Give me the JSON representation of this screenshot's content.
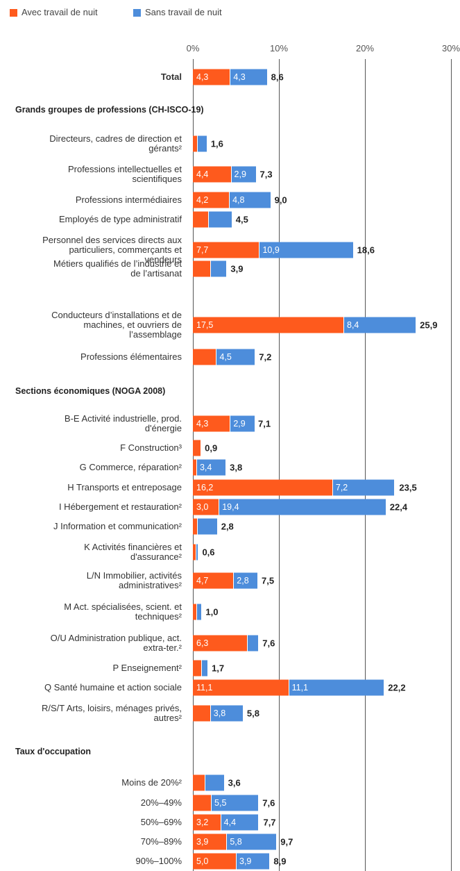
{
  "chart_data": {
    "type": "bar",
    "orientation": "horizontal",
    "stacked": true,
    "sections": [
      "Grands groupes de professions (CH-ISCO-19)",
      "Sections économiques (NOGA 2008)",
      "Taux d'occupation"
    ],
    "categories": [
      "Total",
      "Directeurs, cadres de direction et\ngérants²",
      "Professions intellectuelles et\nscientifiques",
      "Professions intermédiaires",
      "Employés de type administratif",
      "Personnel des services directs aux\nparticuliers, commerçants et\nvendeurs",
      "Métiers qualifiés de l’industrie et\nde l’artisanat",
      "Conducteurs d’installations et de\nmachines, et ouvriers de\nl’assemblage",
      "Professions élémentaires",
      "B-E Activité industrielle, prod.\nd'énergie",
      "F Construction³",
      "G Commerce, réparation²",
      "H Transports et entreposage",
      "I Hébergement et restauration²",
      "J Information et communication²",
      "K Activités financières et\nd'assurance²",
      "L/N Immobilier, activités\nadministratives²",
      "M Act. spécialisées, scient. et\ntechniques²",
      "O/U Administration publique, act.\nextra-ter.²",
      "P Enseignement²",
      "Q Santé humaine et action sociale",
      "R/S/T Arts, loisirs, ménages privés,\nautres²",
      "Moins de 20%²",
      "20%–49%",
      "50%–69%",
      "70%–89%",
      "90%–100%"
    ],
    "series": [
      {
        "name": "Avec travail de nuit",
        "color": "#fe5a1d",
        "values": [
          4.3,
          0.5,
          4.4,
          4.2,
          1.8,
          7.7,
          2.0,
          17.5,
          2.7,
          4.3,
          0.9,
          0.4,
          16.2,
          3.0,
          0.5,
          0.3,
          4.7,
          0.4,
          6.3,
          1.0,
          11.1,
          2.0,
          1.4,
          2.1,
          3.2,
          3.9,
          5.0
        ],
        "value_labels": [
          "4,3",
          null,
          "4,4",
          "4,2",
          null,
          "7,7",
          null,
          "17,5",
          null,
          "4,3",
          null,
          null,
          "16,2",
          "3,0",
          null,
          null,
          "4,7",
          null,
          "6,3",
          null,
          "11,1",
          null,
          null,
          null,
          "3,2",
          "3,9",
          "5,0"
        ]
      },
      {
        "name": "Sans travail de nuit",
        "color": "#4d8ddb",
        "values": [
          4.3,
          1.1,
          2.9,
          4.8,
          2.7,
          10.9,
          1.9,
          8.4,
          4.5,
          2.9,
          null,
          3.4,
          7.2,
          19.4,
          2.3,
          0.3,
          2.8,
          0.6,
          1.3,
          0.7,
          11.1,
          3.8,
          2.2,
          5.5,
          4.4,
          5.8,
          3.9
        ],
        "value_labels": [
          "4,3",
          null,
          "2,9",
          "4,8",
          null,
          "10,9",
          null,
          "8,4",
          "4,5",
          "2,9",
          null,
          "3,4",
          "7,2",
          "19,4",
          null,
          null,
          "2,8",
          null,
          null,
          null,
          "11,1",
          "3,8",
          null,
          "5,5",
          "4,4",
          "5,8",
          "3,9"
        ]
      }
    ],
    "totals": [
      8.6,
      1.6,
      7.3,
      9.0,
      4.5,
      18.6,
      3.9,
      25.9,
      7.2,
      7.1,
      0.9,
      3.8,
      23.5,
      22.4,
      2.8,
      0.6,
      7.5,
      1.0,
      7.6,
      1.7,
      22.2,
      5.8,
      3.6,
      7.6,
      7.7,
      9.7,
      8.9
    ],
    "total_labels": [
      "8,6",
      "1,6",
      "7,3",
      "9,0",
      "4,5",
      "18,6",
      "3,9",
      "25,9",
      "7,2",
      "7,1",
      "0,9",
      "3,8",
      "23,5",
      "22,4",
      "2,8",
      "0,6",
      "7,5",
      "1,0",
      "7,6",
      "1,7",
      "22,2",
      "5,8",
      "3,6",
      "7,6",
      "7,7",
      "9,7",
      "8,9"
    ],
    "xlim": [
      0,
      30
    ],
    "xticks": [
      {
        "value": 0,
        "label": "0%"
      },
      {
        "value": 10,
        "label": "10%"
      },
      {
        "value": 20,
        "label": "20%"
      },
      {
        "value": 30,
        "label": "30%"
      }
    ],
    "grid": true,
    "legend": "top-left"
  }
}
